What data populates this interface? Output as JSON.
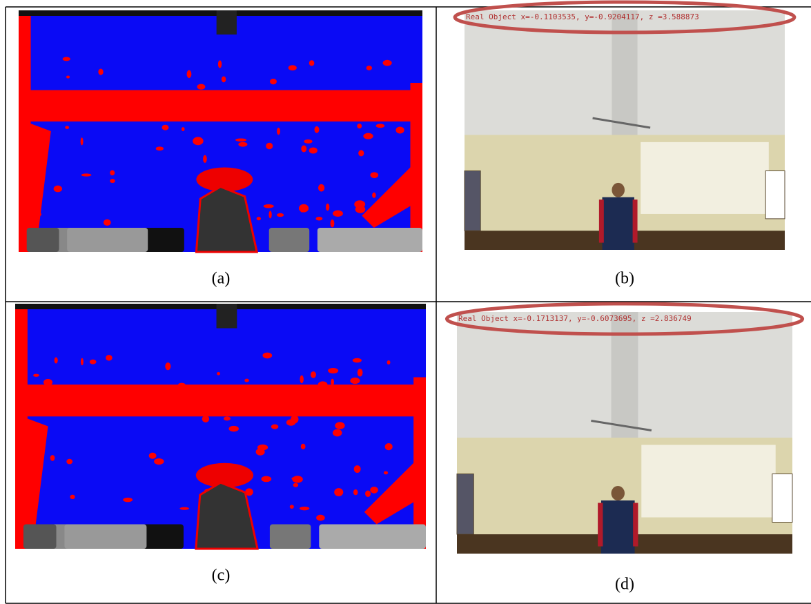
{
  "figure": {
    "cells": [
      {
        "label": "(a)"
      },
      {
        "label": "(b)",
        "overlay": "Real Object x=-0.1103535, y=-0.9204117, z =3.588873"
      },
      {
        "label": "(c)"
      },
      {
        "label": "(d)",
        "overlay": "Real Object x=-0.1713137, y=-0.6073695, z =2.836749"
      }
    ]
  }
}
